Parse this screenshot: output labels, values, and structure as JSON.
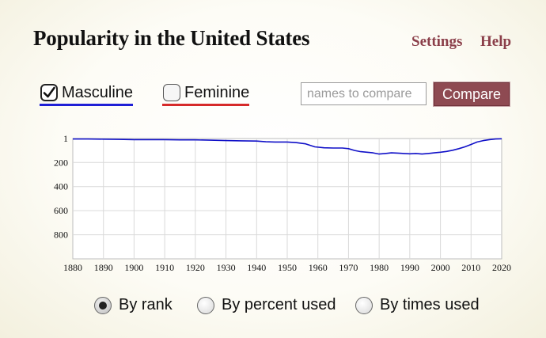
{
  "header": {
    "title": "Popularity in the United States",
    "settings_label": "Settings",
    "help_label": "Help"
  },
  "sex_filter": {
    "masculine": {
      "label": "Masculine",
      "checked": true,
      "underline_color": "#1f1fd6"
    },
    "feminine": {
      "label": "Feminine",
      "checked": false,
      "underline_color": "#d62a2a"
    }
  },
  "compare": {
    "placeholder": "names to compare",
    "value": "",
    "button_label": "Compare"
  },
  "colors": {
    "accent": "#8b3f4a",
    "series_masculine": "#1010c8"
  },
  "chart_data": {
    "type": "line",
    "title": "",
    "xlabel": "",
    "ylabel": "",
    "x_ticks": [
      "1880",
      "1890",
      "1900",
      "1910",
      "1920",
      "1930",
      "1940",
      "1950",
      "1960",
      "1970",
      "1980",
      "1990",
      "2000",
      "2010",
      "2020"
    ],
    "y_ticks": [
      "1",
      "200",
      "400",
      "600",
      "800"
    ],
    "xlim": [
      1880,
      2020
    ],
    "ylim": [
      1,
      1000
    ],
    "y_inverted": true,
    "grid": true,
    "series": [
      {
        "sex": "masculine",
        "color": "#1010c8",
        "x": [
          1880,
          1885,
          1890,
          1895,
          1900,
          1905,
          1910,
          1915,
          1920,
          1925,
          1930,
          1935,
          1940,
          1943,
          1946,
          1950,
          1953,
          1956,
          1959,
          1962,
          1965,
          1968,
          1970,
          1972,
          1974,
          1976,
          1978,
          1980,
          1982,
          1984,
          1986,
          1988,
          1990,
          1992,
          1994,
          1996,
          1998,
          2000,
          2002,
          2004,
          2006,
          2008,
          2010,
          2012,
          2014,
          2016,
          2018,
          2020
        ],
        "y": [
          5,
          5,
          6,
          8,
          10,
          10,
          10,
          12,
          12,
          15,
          18,
          20,
          22,
          28,
          30,
          30,
          35,
          45,
          70,
          78,
          80,
          80,
          85,
          100,
          110,
          115,
          120,
          130,
          125,
          120,
          122,
          125,
          128,
          125,
          130,
          125,
          120,
          115,
          108,
          98,
          85,
          70,
          50,
          30,
          18,
          10,
          5,
          3
        ]
      }
    ]
  },
  "view_mode": {
    "options": [
      {
        "label": "By rank",
        "selected": true
      },
      {
        "label": "By percent used",
        "selected": false
      },
      {
        "label": "By times used",
        "selected": false
      }
    ]
  }
}
